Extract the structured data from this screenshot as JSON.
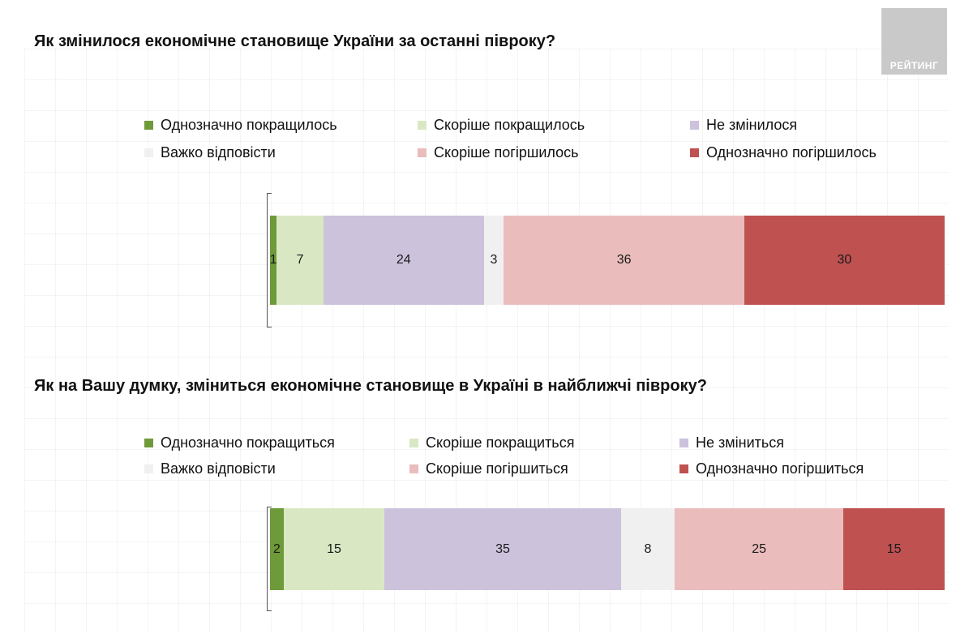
{
  "logo_text": "РЕЙТИНГ",
  "colors": {
    "definitely_better": "#6e9a3a",
    "rather_better": "#d9e8c3",
    "unchanged": "#ccc2dc",
    "hard_to_say": "#f0f0f0",
    "rather_worse": "#ebbcbc",
    "definitely_worse": "#bf5151"
  },
  "chart_data": [
    {
      "type": "bar",
      "orientation": "horizontal-stacked-100",
      "title": "Як змінилося економічне становище України за останні півроку?",
      "legend_position": "top",
      "series": [
        {
          "name": "Однозначно покращилось",
          "values": [
            1
          ],
          "color_key": "definitely_better"
        },
        {
          "name": "Скоріше покращилось",
          "values": [
            7
          ],
          "color_key": "rather_better"
        },
        {
          "name": "Не змінилося",
          "values": [
            24
          ],
          "color_key": "unchanged"
        },
        {
          "name": "Важко відповісти",
          "values": [
            3
          ],
          "color_key": "hard_to_say"
        },
        {
          "name": "Скоріше погіршилось",
          "values": [
            36
          ],
          "color_key": "rather_worse"
        },
        {
          "name": "Однозначно погіршилось",
          "values": [
            30
          ],
          "color_key": "definitely_worse"
        }
      ]
    },
    {
      "type": "bar",
      "orientation": "horizontal-stacked-100",
      "title": "Як на Вашу думку, зміниться економічне становище в Україні в найближчі півроку?",
      "legend_position": "top",
      "series": [
        {
          "name": "Однозначно покращиться",
          "values": [
            2
          ],
          "color_key": "definitely_better"
        },
        {
          "name": "Скоріше покращиться",
          "values": [
            15
          ],
          "color_key": "rather_better"
        },
        {
          "name": "Не зміниться",
          "values": [
            35
          ],
          "color_key": "unchanged"
        },
        {
          "name": "Важко відповісти",
          "values": [
            8
          ],
          "color_key": "hard_to_say"
        },
        {
          "name": "Скоріше погіршиться",
          "values": [
            25
          ],
          "color_key": "rather_worse"
        },
        {
          "name": "Однозначно погіршиться",
          "values": [
            15
          ],
          "color_key": "definitely_worse"
        }
      ]
    }
  ]
}
